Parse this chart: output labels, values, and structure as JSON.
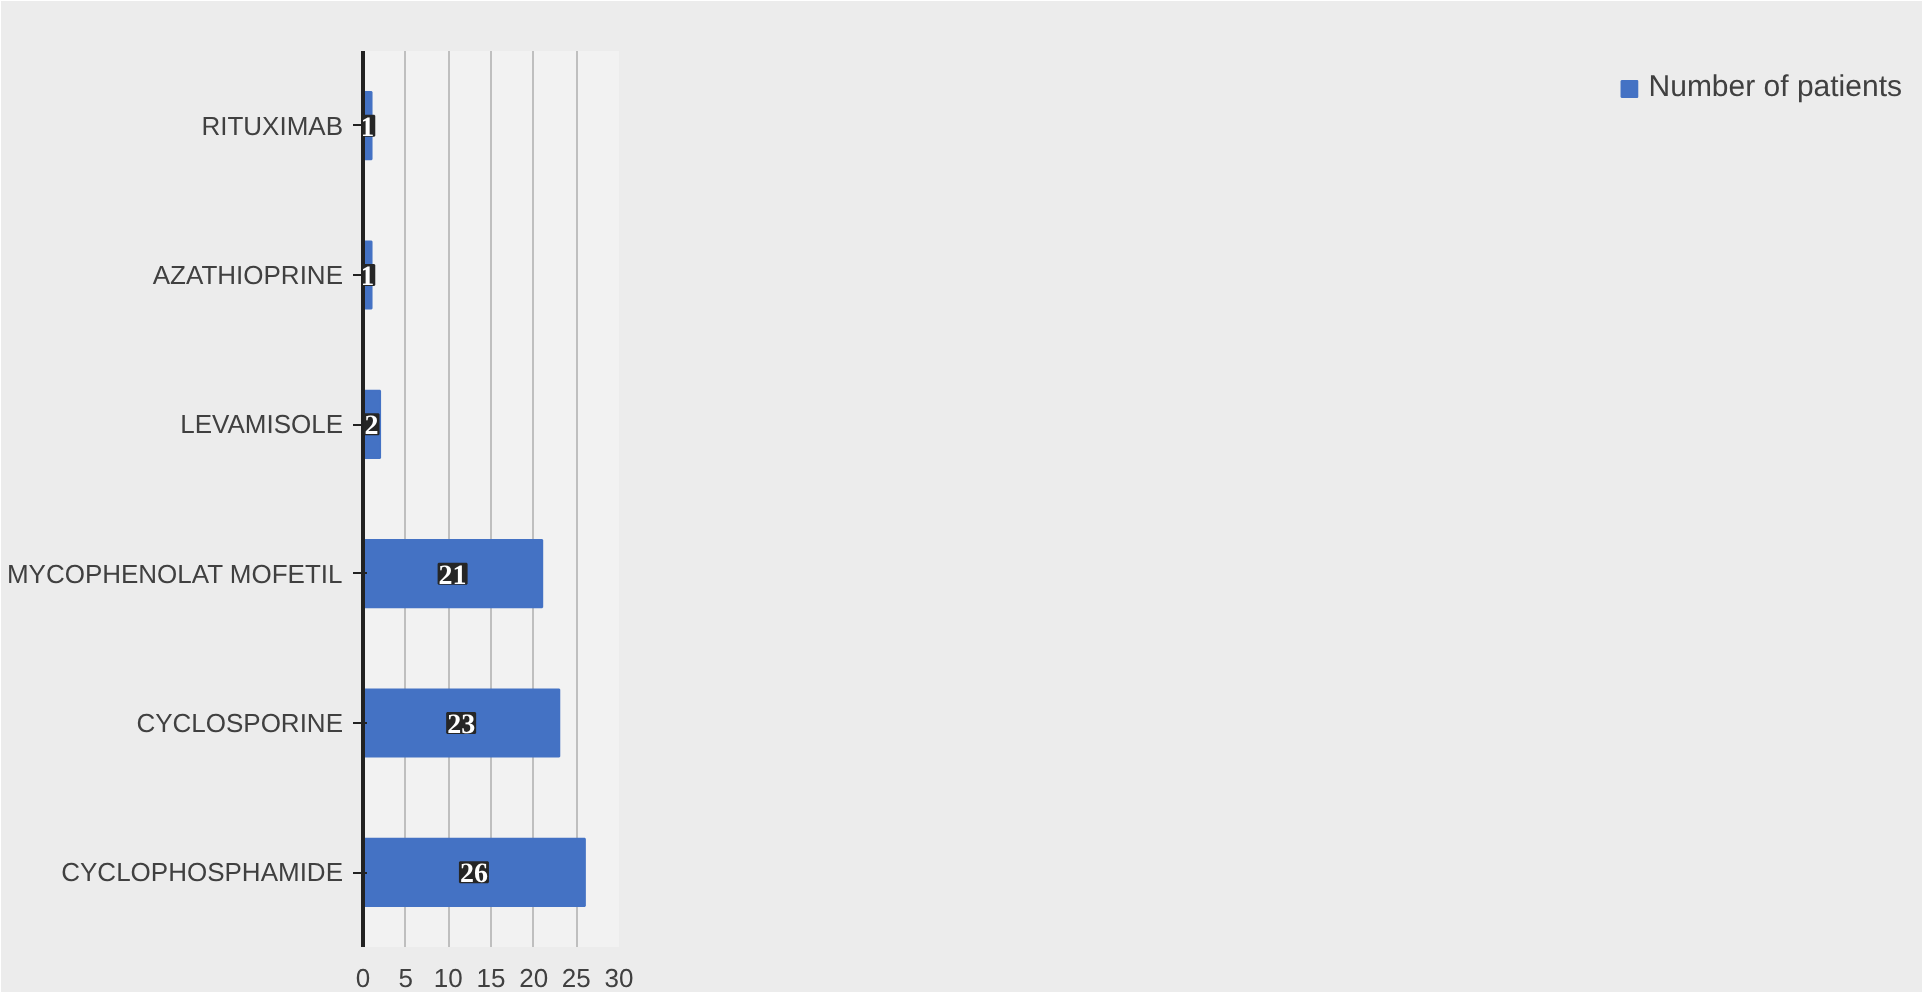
{
  "chart_data": {
    "type": "bar",
    "orientation": "horizontal",
    "categories": [
      "RITUXIMAB",
      "AZATHIOPRINE",
      "LEVAMISOLE",
      "MYCOPHENOLAT MOFETIL",
      "CYCLOSPORINE",
      "CYCLOPHOSPHAMIDE"
    ],
    "series": [
      {
        "name": "Number of patients",
        "color": "#4472c4",
        "values": [
          1,
          1,
          2,
          21,
          23,
          26
        ]
      }
    ],
    "xlim": [
      0,
      30
    ],
    "xticks": [
      0,
      5,
      10,
      15,
      20,
      25,
      30
    ],
    "grid": "x",
    "legend": "right",
    "data_labels": true
  }
}
